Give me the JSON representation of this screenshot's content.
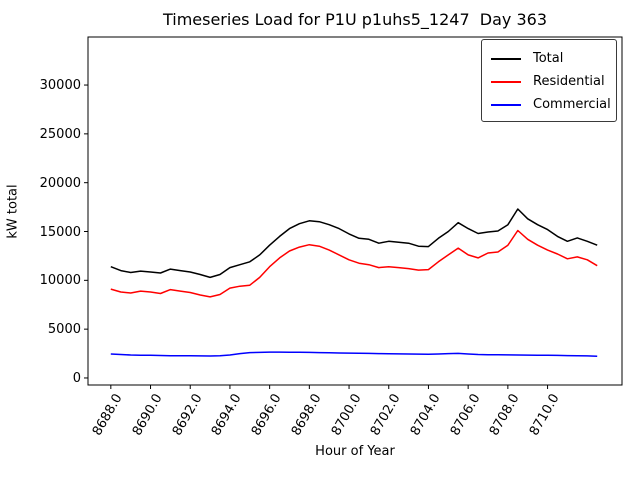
{
  "chart_data": {
    "type": "line",
    "title": "Timeseries Load for P1U p1uhs5_1247  Day 363",
    "xlabel": "Hour of Year",
    "ylabel": "kW total",
    "xlim": [
      8686.85,
      8713.75
    ],
    "ylim": [
      -720,
      34920
    ],
    "grid": false,
    "legend_position": "upper right",
    "xticks": {
      "values": [
        8688,
        8690,
        8692,
        8694,
        8696,
        8698,
        8700,
        8702,
        8704,
        8706,
        8708,
        8710
      ],
      "labels": [
        "8688.0",
        "8690.0",
        "8692.0",
        "8694.0",
        "8696.0",
        "8698.0",
        "8700.0",
        "8702.0",
        "8704.0",
        "8706.0",
        "8708.0",
        "8710.0"
      ]
    },
    "yticks": {
      "values": [
        0,
        5000,
        10000,
        15000,
        20000,
        25000,
        30000
      ],
      "labels": [
        "0",
        "5000",
        "10000",
        "15000",
        "20000",
        "25000",
        "30000"
      ]
    },
    "x": [
      8688.0,
      8688.5,
      8689.0,
      8689.5,
      8690.0,
      8690.5,
      8691.0,
      8691.5,
      8692.0,
      8692.5,
      8693.0,
      8693.5,
      8694.0,
      8694.5,
      8695.0,
      8695.5,
      8696.0,
      8696.5,
      8697.0,
      8697.5,
      8698.0,
      8698.5,
      8699.0,
      8699.5,
      8700.0,
      8700.5,
      8701.0,
      8701.5,
      8702.0,
      8702.5,
      8703.0,
      8703.5,
      8704.0,
      8704.5,
      8705.0,
      8705.5,
      8706.0,
      8706.5,
      8707.0,
      8707.5,
      8708.0,
      8708.5,
      8709.0,
      8709.5,
      8710.0,
      8710.5,
      8711.0,
      8711.5,
      8712.0,
      8712.5
    ],
    "series": [
      {
        "name": "Total",
        "color": "#000000",
        "values": [
          11400,
          11000,
          10800,
          10950,
          10850,
          10750,
          11150,
          11000,
          10850,
          10600,
          10300,
          10600,
          11300,
          11600,
          11900,
          12600,
          13600,
          14500,
          15300,
          15800,
          16100,
          16000,
          15700,
          15300,
          14750,
          14300,
          14200,
          13800,
          14000,
          13900,
          13800,
          13500,
          13450,
          14300,
          15000,
          15900,
          15300,
          14800,
          14950,
          15050,
          15700,
          17300,
          16300,
          15700,
          15200,
          14500,
          14000,
          14350,
          14000,
          13600
        ]
      },
      {
        "name": "Residential",
        "color": "#ff0000",
        "values": [
          9100,
          8800,
          8700,
          8900,
          8800,
          8650,
          9050,
          8900,
          8750,
          8500,
          8300,
          8550,
          9200,
          9400,
          9500,
          10300,
          11400,
          12300,
          13000,
          13400,
          13650,
          13500,
          13100,
          12600,
          12100,
          11750,
          11600,
          11300,
          11400,
          11300,
          11200,
          11050,
          11100,
          11900,
          12600,
          13300,
          12600,
          12300,
          12800,
          12900,
          13600,
          15100,
          14200,
          13600,
          13100,
          12700,
          12200,
          12400,
          12100,
          11500
        ]
      },
      {
        "name": "Commercial",
        "color": "#0000ff",
        "values": [
          2450,
          2400,
          2350,
          2330,
          2320,
          2300,
          2280,
          2280,
          2270,
          2260,
          2250,
          2280,
          2350,
          2500,
          2600,
          2620,
          2650,
          2650,
          2640,
          2630,
          2620,
          2600,
          2580,
          2560,
          2550,
          2530,
          2520,
          2500,
          2480,
          2470,
          2450,
          2440,
          2430,
          2450,
          2500,
          2520,
          2450,
          2400,
          2380,
          2370,
          2360,
          2350,
          2340,
          2330,
          2320,
          2310,
          2290,
          2280,
          2260,
          2230
        ]
      }
    ]
  }
}
